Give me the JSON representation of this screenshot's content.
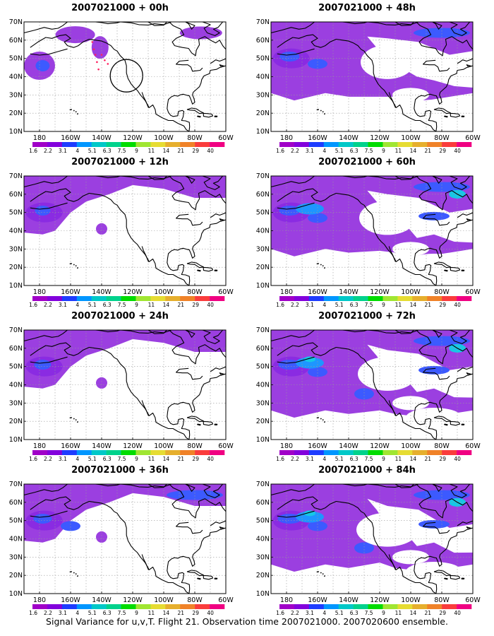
{
  "panels": [
    {
      "title": "2007021000 + 00h",
      "level": 0
    },
    {
      "title": "2007021000 + 48h",
      "level": 4
    },
    {
      "title": "2007021000 + 12h",
      "level": 1
    },
    {
      "title": "2007021000 + 60h",
      "level": 5
    },
    {
      "title": "2007021000 + 24h",
      "level": 2
    },
    {
      "title": "2007021000 + 72h",
      "level": 6
    },
    {
      "title": "2007021000 + 36h",
      "level": 3
    },
    {
      "title": "2007021000 + 84h",
      "level": 7
    }
  ],
  "map": {
    "lat_labels": [
      "70N",
      "60N",
      "50N",
      "40N",
      "30N",
      "20N",
      "10N"
    ],
    "lon_labels": [
      "180",
      "160W",
      "140W",
      "120W",
      "100W",
      "80W",
      "60W"
    ],
    "lat_range": [
      10,
      70
    ],
    "lon_range": [
      -190,
      -60
    ]
  },
  "colorbar": {
    "labels": [
      "1.6",
      "2.2",
      "3.1",
      "4",
      "5.1",
      "6.3",
      "7.5",
      "9",
      "11",
      "14",
      "21",
      "29",
      "40"
    ],
    "colors": [
      "#a000c8",
      "#8200dc",
      "#1e3cff",
      "#0096ff",
      "#00c8c8",
      "#00d28c",
      "#00dc00",
      "#a0e632",
      "#e6dc32",
      "#e6af2d",
      "#f08228",
      "#fa3c3c",
      "#f00082"
    ]
  },
  "colors": {
    "purple": "#9b3fe0",
    "violet": "#8a2be2",
    "blue": "#3c5aff",
    "lightblue": "#1e96ff",
    "cyan": "#16c8e6"
  },
  "footer": "Signal Variance for u,v,T. Flight 21. Observation time 2007021000. 2007020600 ensemble."
}
